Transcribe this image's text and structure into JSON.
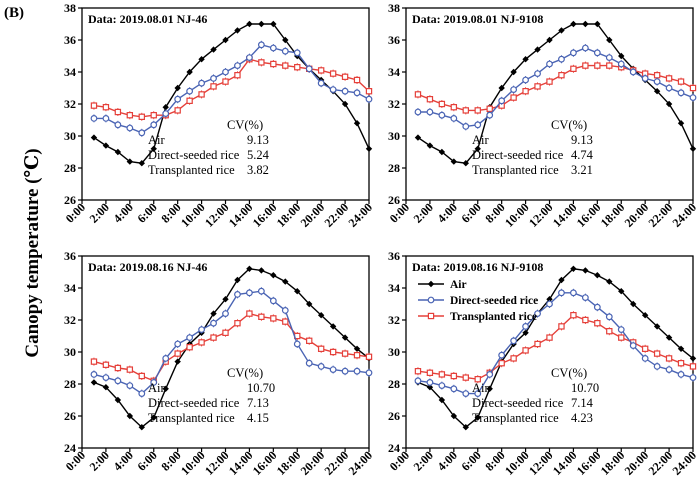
{
  "figure": {
    "label": "(B)",
    "ylabel": "Canopy temperature (℃)"
  },
  "legend": [
    {
      "name": "Air",
      "color": "#000000",
      "marker": "diamond"
    },
    {
      "name": "Direct-seeded rice",
      "color": "#4a64b4",
      "marker": "circle"
    },
    {
      "name": "Transplanted rice",
      "color": "#e5403a",
      "marker": "square"
    }
  ],
  "chart_data": [
    {
      "type": "line",
      "title": "Data: 2019.08.01 NJ-46",
      "xlabel": "",
      "ylabel": "Canopy temperature (℃)",
      "xticks": [
        "0:00",
        "2:00",
        "4:00",
        "6:00",
        "8:00",
        "10:00",
        "12:00",
        "14:00",
        "16:00",
        "18:00",
        "20:00",
        "22:00",
        "24:00"
      ],
      "ylim": [
        26,
        38
      ],
      "yticks": [
        26,
        28,
        30,
        32,
        34,
        36,
        38
      ],
      "x": [
        1,
        2,
        3,
        4,
        5,
        6,
        7,
        8,
        9,
        10,
        11,
        12,
        13,
        14,
        15,
        16,
        17,
        18,
        19,
        20,
        21,
        22,
        23,
        24
      ],
      "series": [
        {
          "name": "Air",
          "values": [
            29.9,
            29.4,
            29.0,
            28.4,
            28.3,
            29.2,
            31.8,
            33.0,
            34.0,
            34.8,
            35.4,
            36.0,
            36.6,
            37.0,
            37.0,
            37.0,
            36.0,
            35.0,
            34.2,
            33.5,
            32.8,
            32.0,
            30.8,
            29.2
          ]
        },
        {
          "name": "Direct-seeded rice",
          "values": [
            31.1,
            31.1,
            30.7,
            30.5,
            30.2,
            30.7,
            31.4,
            32.3,
            32.8,
            33.3,
            33.6,
            34.0,
            34.4,
            34.9,
            35.7,
            35.5,
            35.3,
            35.2,
            34.2,
            33.3,
            32.9,
            32.8,
            32.7,
            32.3
          ]
        },
        {
          "name": "Transplanted rice",
          "values": [
            31.9,
            31.8,
            31.5,
            31.3,
            31.2,
            31.3,
            31.3,
            31.6,
            32.2,
            32.6,
            33.1,
            33.4,
            33.8,
            34.8,
            34.6,
            34.5,
            34.4,
            34.3,
            34.2,
            34.1,
            33.9,
            33.7,
            33.5,
            32.8
          ]
        }
      ],
      "cv_header": "CV(%)",
      "cv": [
        {
          "label": "Air",
          "value": "9.13"
        },
        {
          "label": "Direct-seeded rice",
          "value": "5.24"
        },
        {
          "label": "Transplanted rice",
          "value": "3.82"
        }
      ]
    },
    {
      "type": "line",
      "title": "Data: 2019.08.01 NJ-9108",
      "xlabel": "",
      "ylabel": "",
      "xticks": [
        "0:00",
        "2:00",
        "4:00",
        "6:00",
        "8:00",
        "10:00",
        "12:00",
        "14:00",
        "16:00",
        "18:00",
        "20:00",
        "22:00",
        "24:00"
      ],
      "ylim": [
        26,
        38
      ],
      "yticks": [
        26,
        28,
        30,
        32,
        34,
        36,
        38
      ],
      "x": [
        1,
        2,
        3,
        4,
        5,
        6,
        7,
        8,
        9,
        10,
        11,
        12,
        13,
        14,
        15,
        16,
        17,
        18,
        19,
        20,
        21,
        22,
        23,
        24
      ],
      "series": [
        {
          "name": "Air",
          "values": [
            29.9,
            29.4,
            29.0,
            28.4,
            28.3,
            29.2,
            31.8,
            33.0,
            34.0,
            34.8,
            35.4,
            36.0,
            36.6,
            37.0,
            37.0,
            37.0,
            36.0,
            35.0,
            34.2,
            33.5,
            32.8,
            32.0,
            30.8,
            29.2
          ]
        },
        {
          "name": "Direct-seeded rice",
          "values": [
            31.5,
            31.5,
            31.3,
            31.1,
            30.6,
            30.7,
            31.3,
            32.2,
            32.9,
            33.5,
            33.9,
            34.5,
            34.8,
            35.2,
            35.5,
            35.2,
            34.9,
            34.5,
            34.0,
            33.6,
            33.4,
            33.0,
            32.7,
            32.4
          ]
        },
        {
          "name": "Transplanted rice",
          "values": [
            32.6,
            32.3,
            32.0,
            31.8,
            31.6,
            31.6,
            31.7,
            31.9,
            32.4,
            32.8,
            33.1,
            33.4,
            33.8,
            34.2,
            34.4,
            34.4,
            34.4,
            34.3,
            34.1,
            33.9,
            33.8,
            33.6,
            33.4,
            33.0
          ]
        }
      ],
      "cv_header": "CV(%)",
      "cv": [
        {
          "label": "Air",
          "value": "9.13"
        },
        {
          "label": "Direct-seeded rice",
          "value": "4.74"
        },
        {
          "label": "Transplanted rice",
          "value": "3.21"
        }
      ]
    },
    {
      "type": "line",
      "title": "Data: 2019.08.16 NJ-46",
      "xlabel": "",
      "ylabel": "Canopy temperature (℃)",
      "xticks": [
        "0:00",
        "2:00",
        "4:00",
        "6:00",
        "8:00",
        "10:00",
        "12:00",
        "14:00",
        "16:00",
        "18:00",
        "20:00",
        "22:00",
        "24:00"
      ],
      "ylim": [
        24,
        36
      ],
      "yticks": [
        24,
        26,
        28,
        30,
        32,
        34,
        36
      ],
      "x": [
        1,
        2,
        3,
        4,
        5,
        6,
        7,
        8,
        9,
        10,
        11,
        12,
        13,
        14,
        15,
        16,
        17,
        18,
        19,
        20,
        21,
        22,
        23,
        24
      ],
      "series": [
        {
          "name": "Air",
          "values": [
            28.1,
            27.8,
            27.0,
            26.0,
            25.3,
            25.9,
            27.7,
            29.4,
            30.5,
            31.2,
            32.4,
            33.3,
            34.5,
            35.2,
            35.1,
            34.8,
            34.4,
            33.8,
            33.0,
            32.3,
            31.6,
            30.9,
            30.2,
            29.6
          ]
        },
        {
          "name": "Direct-seeded rice",
          "values": [
            28.6,
            28.4,
            28.2,
            27.9,
            27.4,
            28.1,
            29.6,
            30.5,
            30.9,
            31.4,
            31.8,
            32.4,
            33.6,
            33.7,
            33.8,
            33.2,
            32.6,
            30.5,
            29.3,
            29.1,
            28.9,
            28.8,
            28.8,
            28.7
          ]
        },
        {
          "name": "Transplanted rice",
          "values": [
            29.4,
            29.2,
            29.0,
            28.9,
            28.5,
            28.2,
            29.4,
            29.9,
            30.3,
            30.6,
            30.9,
            31.2,
            31.8,
            32.4,
            32.2,
            32.1,
            31.9,
            31.0,
            30.7,
            30.2,
            30.0,
            29.9,
            29.8,
            29.7
          ]
        }
      ],
      "cv_header": "CV(%)",
      "cv": [
        {
          "label": "Air",
          "value": "10.70"
        },
        {
          "label": "Direct-seeded rice",
          "value": "7.13"
        },
        {
          "label": "Transplanted rice",
          "value": "4.15"
        }
      ]
    },
    {
      "type": "line",
      "title": "Data: 2019.08.16 NJ-9108",
      "xlabel": "",
      "ylabel": "",
      "xticks": [
        "0:00",
        "2:00",
        "4:00",
        "6:00",
        "8:00",
        "10:00",
        "12:00",
        "14:00",
        "16:00",
        "18:00",
        "20:00",
        "22:00",
        "24:00"
      ],
      "ylim": [
        24,
        36
      ],
      "yticks": [
        24,
        26,
        28,
        30,
        32,
        34,
        36
      ],
      "x": [
        1,
        2,
        3,
        4,
        5,
        6,
        7,
        8,
        9,
        10,
        11,
        12,
        13,
        14,
        15,
        16,
        17,
        18,
        19,
        20,
        21,
        22,
        23,
        24
      ],
      "series": [
        {
          "name": "Air",
          "values": [
            28.1,
            27.8,
            27.0,
            26.0,
            25.3,
            25.9,
            27.7,
            29.4,
            30.5,
            31.2,
            32.4,
            33.3,
            34.5,
            35.2,
            35.1,
            34.8,
            34.4,
            33.8,
            33.0,
            32.3,
            31.6,
            30.9,
            30.2,
            29.6
          ]
        },
        {
          "name": "Direct-seeded rice",
          "values": [
            28.2,
            28.1,
            27.9,
            27.7,
            27.4,
            27.4,
            28.6,
            29.8,
            30.7,
            31.6,
            32.4,
            33.0,
            33.7,
            33.7,
            33.4,
            32.8,
            32.2,
            31.4,
            30.4,
            29.6,
            29.1,
            28.9,
            28.6,
            28.4
          ]
        },
        {
          "name": "Transplanted rice",
          "values": [
            28.8,
            28.7,
            28.6,
            28.5,
            28.4,
            28.3,
            28.7,
            29.3,
            29.6,
            30.1,
            30.5,
            30.9,
            31.6,
            32.3,
            32.0,
            31.8,
            31.3,
            30.9,
            30.6,
            30.2,
            29.9,
            29.6,
            29.3,
            29.1
          ]
        }
      ],
      "cv_header": "CV(%)",
      "cv": [
        {
          "label": "Air",
          "value": "10.70"
        },
        {
          "label": "Direct-seeded rice",
          "value": "7.14"
        },
        {
          "label": "Transplanted rice",
          "value": "4.23"
        }
      ]
    }
  ]
}
